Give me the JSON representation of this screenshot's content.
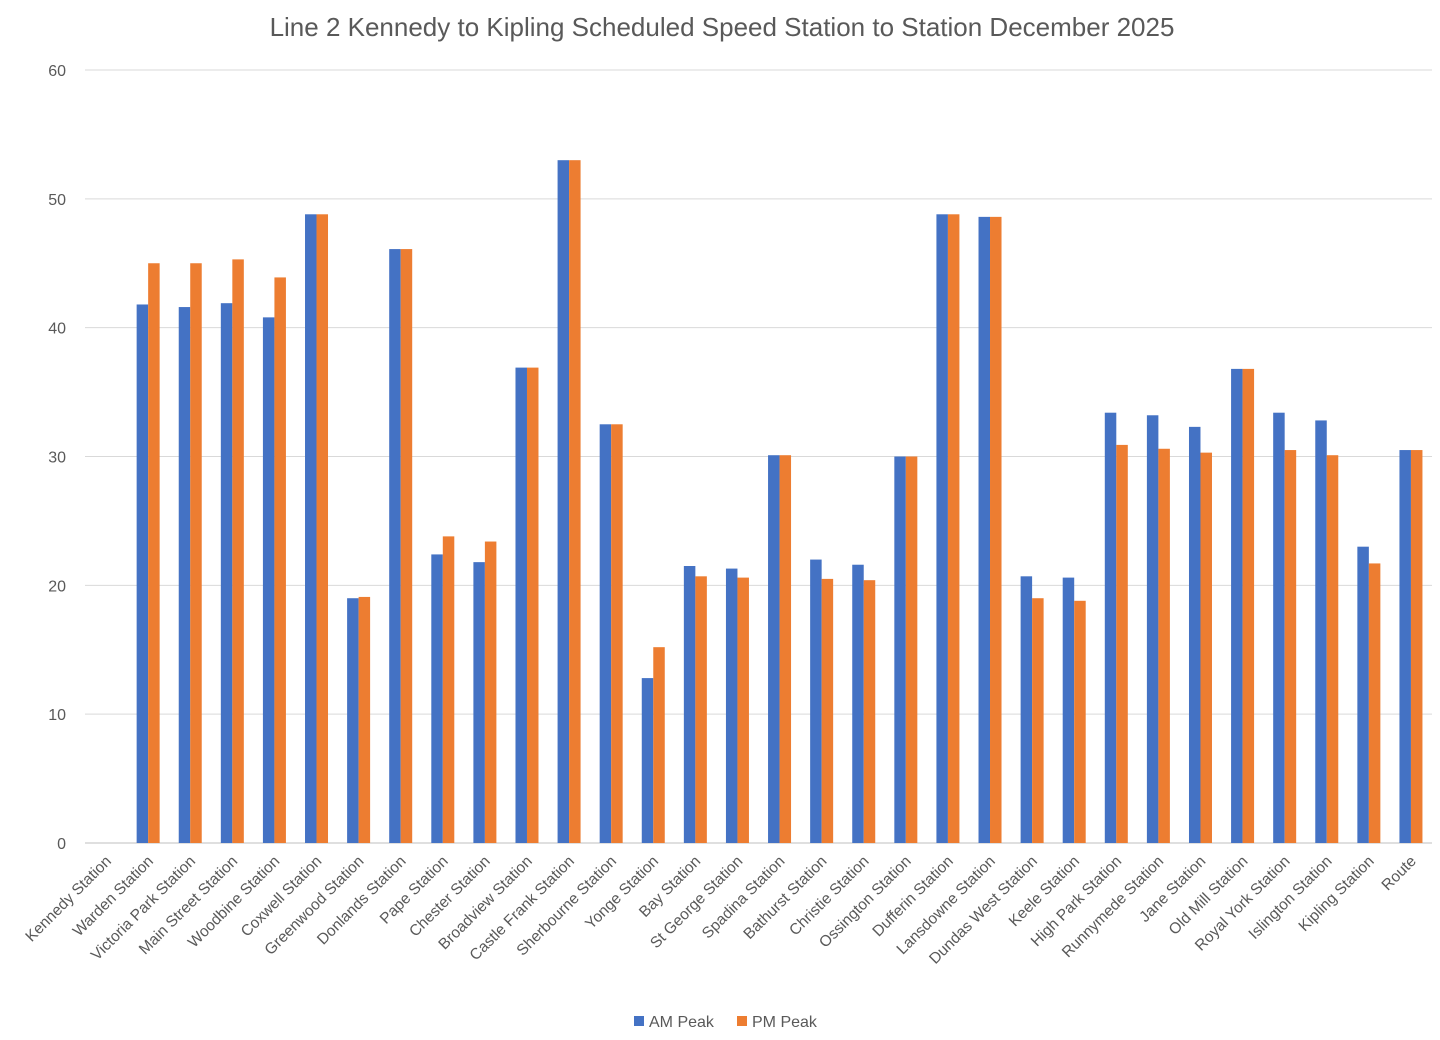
{
  "chart_data": {
    "type": "bar",
    "title": "Line 2 Kennedy to Kipling Scheduled Speed Station to Station December 2025",
    "xlabel": "",
    "ylabel": "",
    "ylim": [
      0,
      60
    ],
    "yticks": [
      0,
      10,
      20,
      30,
      40,
      50,
      60
    ],
    "grid": true,
    "legend_position": "bottom",
    "categories": [
      "Kennedy Station",
      "Warden Station",
      "Victoria Park Station",
      "Main Street Station",
      "Woodbine Station",
      "Coxwell Station",
      "Greenwood Station",
      "Donlands Station",
      "Pape Station",
      "Chester Station",
      "Broadview Station",
      "Castle Frank Station",
      "Sherbourne Station",
      "Yonge Station",
      "Bay Station",
      "St George Station",
      "Spadina Station",
      "Bathurst Station",
      "Christie Station",
      "Ossington Station",
      "Dufferin Station",
      "Lansdowne Station",
      "Dundas West Station",
      "Keele Station",
      "High Park Station",
      "Runnymede Station",
      "Jane Station",
      "Old Mill Station",
      "Royal York Station",
      "Islington Station",
      "Kipling Station",
      "Route"
    ],
    "series": [
      {
        "name": "AM Peak",
        "color": "#4472C4",
        "values": [
          0,
          41.8,
          41.6,
          41.9,
          40.8,
          48.8,
          19.0,
          46.1,
          22.4,
          21.8,
          36.9,
          53.0,
          32.5,
          12.8,
          21.5,
          21.3,
          30.1,
          22.0,
          21.6,
          30.0,
          48.8,
          48.6,
          20.7,
          20.6,
          33.4,
          33.2,
          32.3,
          36.8,
          33.4,
          32.8,
          23.0,
          30.5
        ]
      },
      {
        "name": "PM Peak",
        "color": "#ED7D31",
        "values": [
          0,
          45.0,
          45.0,
          45.3,
          43.9,
          48.8,
          19.1,
          46.1,
          23.8,
          23.4,
          36.9,
          53.0,
          32.5,
          15.2,
          20.7,
          20.6,
          30.1,
          20.5,
          20.4,
          30.0,
          48.8,
          48.6,
          19.0,
          18.8,
          30.9,
          30.6,
          30.3,
          36.8,
          30.5,
          30.1,
          21.7,
          30.5
        ]
      }
    ]
  }
}
